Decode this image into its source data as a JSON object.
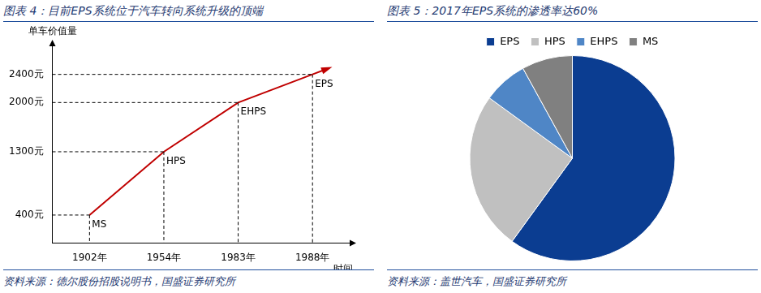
{
  "chart_data": [
    {
      "type": "line",
      "title": "图表 4：目前EPS系统位于汽车转向系统升级的顶端",
      "source": "资料来源：德尔股份招股说明书，国盛证券研究所",
      "x_label": "时间",
      "y_label": "单车价值量",
      "categories": [
        "1902年",
        "1954年",
        "1983年",
        "1988年"
      ],
      "values": [
        400,
        1300,
        2000,
        2400
      ],
      "point_labels": [
        "MS",
        "HPS",
        "EHPS",
        "EPS"
      ],
      "color": "#c00000",
      "ylim": [
        0,
        2800
      ],
      "yticks": [
        {
          "value": 400,
          "label": "400元"
        },
        {
          "value": 1300,
          "label": "1300元"
        },
        {
          "value": 2000,
          "label": "2000元"
        },
        {
          "value": 2400,
          "label": "2400元"
        }
      ],
      "grid": false
    },
    {
      "type": "pie",
      "title": "图表 5：2017年EPS系统的渗透率达60%",
      "source": "资料来源：盖世汽车，国盛证券研究所",
      "categories": [
        "EPS",
        "HPS",
        "EHPS",
        "MS"
      ],
      "values": [
        60,
        25,
        7,
        8
      ],
      "colors": [
        "#0b3d91",
        "#c0c0c0",
        "#4f86c6",
        "#808080"
      ],
      "legend": "top"
    }
  ]
}
